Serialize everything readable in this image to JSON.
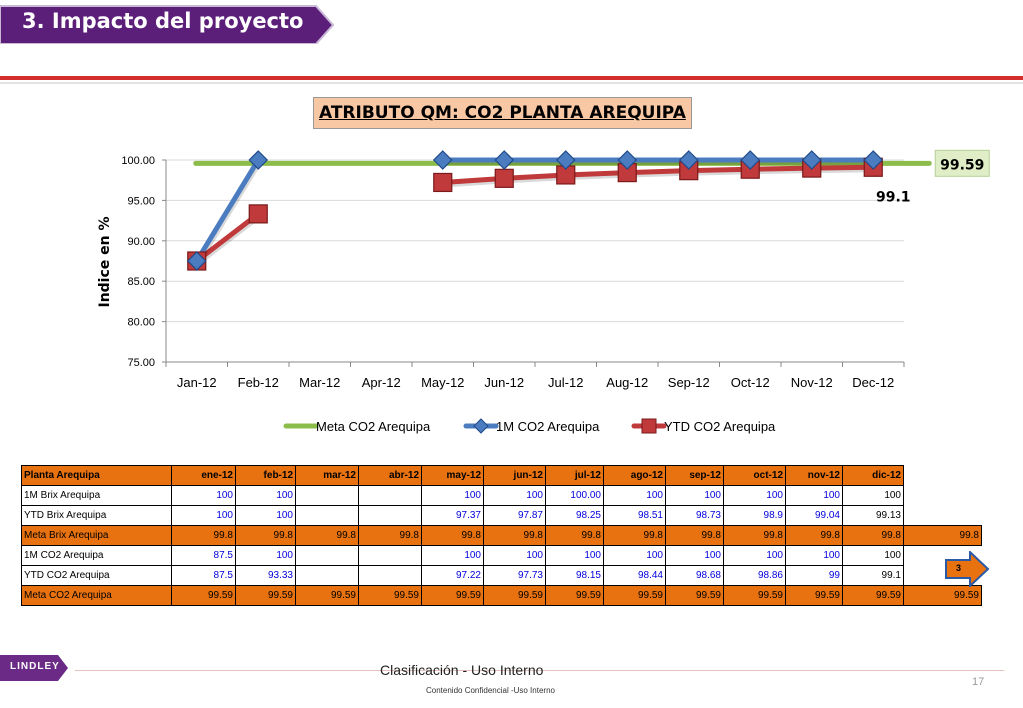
{
  "slide": {
    "title": "3. Impacto del proyecto",
    "footer_main": "Clasificación - Uso Interno",
    "footer_sub": "Contenido Confidencial -Uso Interno",
    "page_number": "17",
    "logo_text": "LINDLEY",
    "nav_button_label": "3"
  },
  "colors": {
    "title_banner": "#5b1f7a",
    "accent_red": "#d42d2d",
    "table_orange": "#e8720f",
    "meta_series": "#8cbd4a",
    "monthly_series": "#4c7cc0",
    "ytd_series": "#c0393b",
    "chart_title_bg": "#f8c8a4",
    "label_highlight_bg": "#dfeec7"
  },
  "chart_data": {
    "type": "line",
    "title": "ATRIBUTO QM: CO2 PLANTA AREQUIPA",
    "ylabel": "Indice en %",
    "xlabel": "",
    "categories": [
      "Jan-12",
      "Feb-12",
      "Mar-12",
      "Apr-12",
      "May-12",
      "Jun-12",
      "Jul-12",
      "Aug-12",
      "Sep-12",
      "Oct-12",
      "Nov-12",
      "Dec-12"
    ],
    "ylim": [
      75,
      100
    ],
    "yticks": [
      "75.00",
      "80.00",
      "85.00",
      "90.00",
      "95.00",
      "100.00"
    ],
    "grid": true,
    "legend_position": "bottom",
    "series": [
      {
        "name": "Meta CO2 Arequipa",
        "values": [
          99.59,
          99.59,
          99.59,
          99.59,
          99.59,
          99.59,
          99.59,
          99.59,
          99.59,
          99.59,
          99.59,
          99.59
        ],
        "marker": "none"
      },
      {
        "name": "1M CO2 Arequipa",
        "values": [
          87.5,
          100,
          null,
          null,
          100,
          100,
          100,
          100,
          100,
          100,
          100,
          100
        ],
        "marker": "diamond"
      },
      {
        "name": "YTD CO2 Arequipa",
        "values": [
          87.5,
          93.33,
          null,
          null,
          97.22,
          97.73,
          98.15,
          98.44,
          98.68,
          98.86,
          99,
          99.1
        ],
        "marker": "square"
      }
    ],
    "annotations": [
      "99.59",
      "99.1"
    ]
  },
  "table": {
    "headers": [
      "Planta Arequipa",
      "ene-12",
      "feb-12",
      "mar-12",
      "abr-12",
      "may-12",
      "jun-12",
      "jul-12",
      "ago-12",
      "sep-12",
      "oct-12",
      "nov-12",
      "dic-12",
      ""
    ],
    "rows": [
      {
        "cells": [
          "1M Brix Arequipa",
          "100",
          "100",
          "",
          "",
          "100",
          "100",
          "100.00",
          "100",
          "100",
          "100",
          "100",
          "100",
          ""
        ],
        "orange": false
      },
      {
        "cells": [
          "YTD Brix Arequipa",
          "100",
          "100",
          "",
          "",
          "97.37",
          "97.87",
          "98.25",
          "98.51",
          "98.73",
          "98.9",
          "99.04",
          "99.13",
          ""
        ],
        "orange": false
      },
      {
        "cells": [
          "Meta Brix Arequipa",
          "99.8",
          "99.8",
          "99.8",
          "99.8",
          "99.8",
          "99.8",
          "99.8",
          "99.8",
          "99.8",
          "99.8",
          "99.8",
          "99.8",
          "99.8"
        ],
        "orange": true
      },
      {
        "cells": [
          "1M CO2 Arequipa",
          "87.5",
          "100",
          "",
          "",
          "100",
          "100",
          "100",
          "100",
          "100",
          "100",
          "100",
          "100",
          ""
        ],
        "orange": false
      },
      {
        "cells": [
          "YTD CO2 Arequipa",
          "87.5",
          "93.33",
          "",
          "",
          "97.22",
          "97.73",
          "98.15",
          "98.44",
          "98.68",
          "98.86",
          "99",
          "99.1",
          ""
        ],
        "orange": false
      },
      {
        "cells": [
          "Meta CO2 Arequipa",
          "99.59",
          "99.59",
          "99.59",
          "99.59",
          "99.59",
          "99.59",
          "99.59",
          "99.59",
          "99.59",
          "99.59",
          "99.59",
          "99.59",
          "99.59"
        ],
        "orange": true
      }
    ]
  }
}
